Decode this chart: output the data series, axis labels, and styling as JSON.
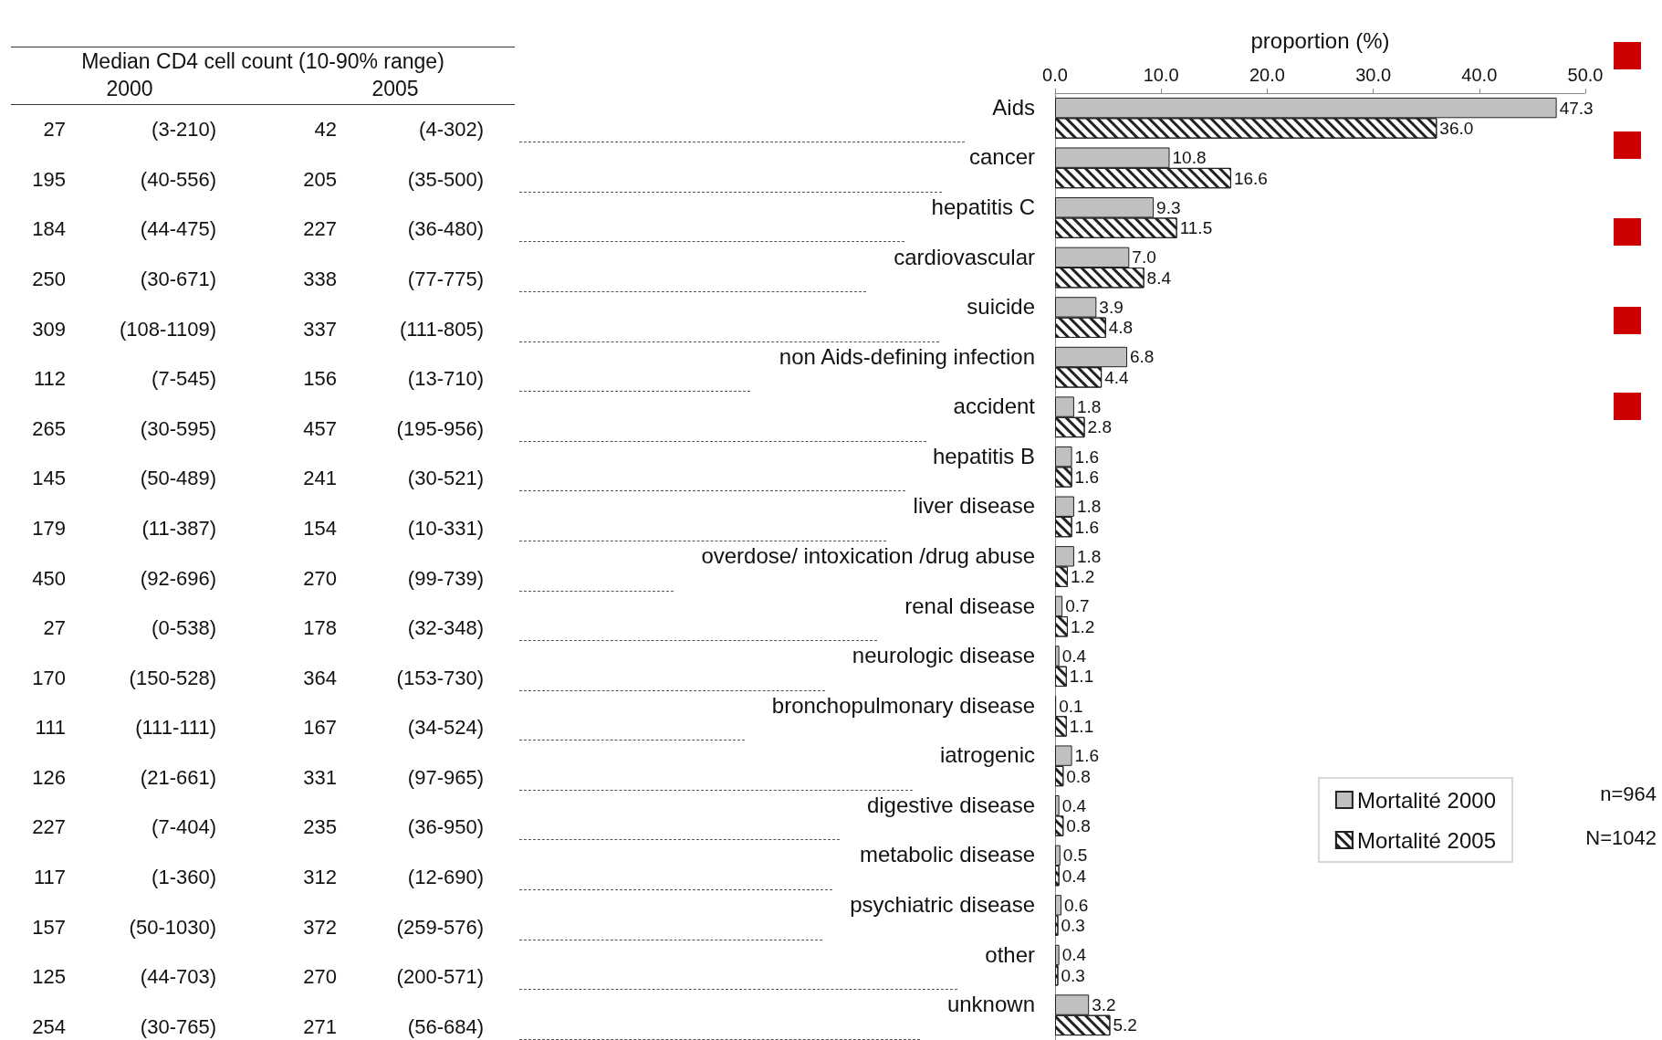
{
  "chart_data": [
    {
      "type": "other",
      "title": "Median CD4 cell count (10-90% range)",
      "categories": [
        "2000",
        "2005"
      ],
      "cell_labels": [
        [
          "27",
          "(3-210)",
          "42",
          "(4-302)"
        ],
        [
          "195",
          "(40-556)",
          "205",
          "(35-500)"
        ],
        [
          "184",
          "(44-475)",
          "227",
          "(36-480)"
        ],
        [
          "250",
          "(30-671)",
          "338",
          "(77-775)"
        ],
        [
          "309",
          "(108-1109)",
          "337",
          "(111-805)"
        ],
        [
          "112",
          "(7-545)",
          "156",
          "(13-710)"
        ],
        [
          "265",
          "(30-595)",
          "457",
          "(195-956)"
        ],
        [
          "145",
          "(50-489)",
          "241",
          "(30-521)"
        ],
        [
          "179",
          "(11-387)",
          "154",
          "(10-331)"
        ],
        [
          "450",
          "(92-696)",
          "270",
          "(99-739)"
        ],
        [
          "27",
          "(0-538)",
          "178",
          "(32-348)"
        ],
        [
          "170",
          "(150-528)",
          "364",
          "(153-730)"
        ],
        [
          "111",
          "(111-111)",
          "167",
          "(34-524)"
        ],
        [
          "126",
          "(21-661)",
          "331",
          "(97-965)"
        ],
        [
          "227",
          "(7-404)",
          "235",
          "(36-950)"
        ],
        [
          "117",
          "(1-360)",
          "312",
          "(12-690)"
        ],
        [
          "157",
          "(50-1030)",
          "372",
          "(259-576)"
        ],
        [
          "125",
          "(44-703)",
          "270",
          "(200-571)"
        ],
        [
          "254",
          "(30-765)",
          "271",
          "(56-684)"
        ]
      ]
    },
    {
      "type": "bar",
      "orientation": "horizontal",
      "xlabel": "proportion (%)",
      "categories": [
        "Aids",
        "cancer",
        "hepatitis C",
        "cardiovascular",
        "suicide",
        "non Aids-defining infection",
        "accident",
        "hepatitis B",
        "liver disease",
        "overdose/ intoxication /drug abuse",
        "renal disease",
        "neurologic disease",
        "bronchopulmonary disease",
        "iatrogenic",
        "digestive disease",
        "metabolic disease",
        "psychiatric disease",
        "other",
        "unknown"
      ],
      "series": [
        {
          "name": "Mortalité 2000",
          "color": "#c0c0c0",
          "values": [
            47.3,
            10.8,
            9.3,
            7.0,
            3.9,
            6.8,
            1.8,
            1.6,
            1.8,
            1.8,
            0.7,
            0.4,
            0.1,
            1.6,
            0.4,
            0.5,
            0.6,
            0.4,
            3.2
          ],
          "value_labels": [
            "47.3",
            "10.8",
            "9.3",
            "7.0",
            "3.9",
            "6.8",
            "1.8",
            "1.6",
            "1.8",
            "1.8",
            "0.7",
            "0.4",
            "0.1",
            "1.6",
            "0.4",
            "0.5",
            "0.6",
            "0.4",
            "3.2"
          ]
        },
        {
          "name": "Mortalité 2005",
          "color": "#ffffff",
          "values": [
            36.0,
            16.6,
            11.5,
            8.4,
            4.8,
            4.4,
            2.8,
            1.6,
            1.6,
            1.2,
            1.2,
            1.1,
            1.1,
            0.8,
            0.8,
            0.4,
            0.3,
            0.3,
            5.2
          ],
          "value_labels": [
            "36.0",
            "16.6",
            "11.5",
            "8.4",
            "4.8",
            "4.4",
            "2.8",
            "1.6",
            "1.6",
            "1.2",
            "1.2",
            "1.1",
            "1.1",
            "0.8",
            "0.8",
            "0.4",
            "0.3",
            "0.3",
            "5.2"
          ]
        }
      ],
      "xlim": [
        0,
        50
      ],
      "xticks": [
        {
          "value": 0,
          "label": "0.0"
        },
        {
          "value": 10,
          "label": "10.0"
        },
        {
          "value": 20,
          "label": "20.0"
        },
        {
          "value": 30,
          "label": "30.0"
        },
        {
          "value": 40,
          "label": "40.0"
        },
        {
          "value": 50,
          "label": "50.0"
        }
      ],
      "grid": false,
      "legend": "right",
      "annotations": [
        "n=964",
        "N=1042"
      ]
    }
  ]
}
